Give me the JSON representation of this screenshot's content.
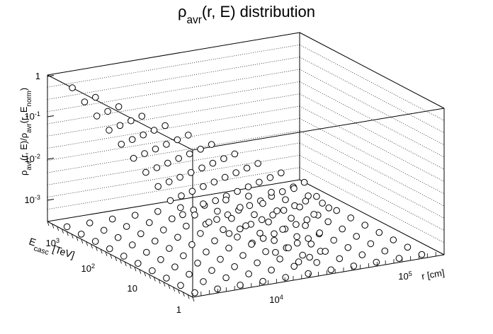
{
  "chart_data": {
    "type": "scatter",
    "title": {
      "base": "ρ",
      "sub": "avr",
      "rest": "(r, E) distribution"
    },
    "z_axis": {
      "label_parts": [
        {
          "t": "ρ",
          "role": "base"
        },
        {
          "t": "avr",
          "role": "sub"
        },
        {
          "t": "(r, E)/ρ",
          "role": "base"
        },
        {
          "t": "avr",
          "role": "sub"
        },
        {
          "t": "(r, E",
          "role": "base"
        },
        {
          "t": "norm",
          "role": "sub"
        },
        {
          "t": ")",
          "role": "base"
        }
      ],
      "ticks": [
        {
          "label": "1"
        },
        {
          "label": "10",
          "exp": "-1"
        },
        {
          "label": "10",
          "exp": "-2"
        },
        {
          "label": "10",
          "exp": "-3"
        }
      ],
      "log": true
    },
    "e_axis": {
      "label_parts": [
        {
          "t": "E",
          "role": "base"
        },
        {
          "t": "casc",
          "role": "sub"
        },
        {
          "t": " [TeV]",
          "role": "base"
        }
      ],
      "ticks": [
        {
          "label": "1"
        },
        {
          "label": "10"
        },
        {
          "label": "10",
          "exp": "2"
        },
        {
          "label": "10",
          "exp": "3"
        }
      ],
      "log": true
    },
    "r_axis": {
      "label": "r [cm]",
      "ticks": [
        {
          "label": "10",
          "exp": "4"
        },
        {
          "label": "10",
          "exp": "5"
        }
      ],
      "log": true
    },
    "grid": true,
    "series": [
      {
        "marker": "open-circle",
        "ridge_z_log10": [
          0.0,
          -0.31,
          -0.62,
          -0.93,
          -1.24,
          -1.55,
          -1.86,
          -2.17,
          -2.48,
          -2.79,
          -3.1
        ],
        "e_levels_log10": [
          0.0,
          0.4,
          0.8,
          1.2,
          1.6,
          2.0,
          2.4,
          2.8,
          3.2,
          3.6
        ],
        "r_index_count": 11,
        "note_points": "each ridge row spans all E levels; floor projection repeats same grid"
      }
    ]
  }
}
